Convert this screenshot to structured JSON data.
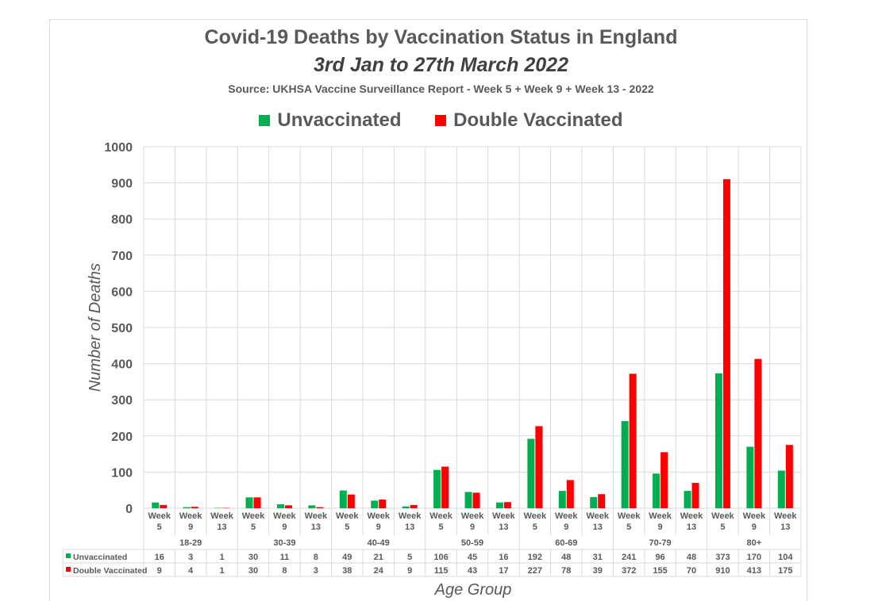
{
  "colors": {
    "unvaccinated": "#00b050",
    "double_vaccinated": "#ff0000",
    "grid": "#d9d9d9",
    "text": "#595959"
  },
  "header": {
    "title": "Covid-19 Deaths by Vaccination Status in England",
    "subtitle": "3rd Jan to 27th March 2022",
    "source": "Source: UKHSA Vaccine Surveillance Report - Week 5 + Week 9 + Week 13 - 2022"
  },
  "legend": {
    "unvaccinated": "Unvaccinated",
    "double_vaccinated": "Double Vaccinated"
  },
  "chart_data": {
    "type": "bar",
    "title": "Covid-19 Deaths by Vaccination Status in England",
    "subtitle": "3rd Jan to 27th March 2022",
    "ylabel": "Number of Deaths",
    "xlabel": "Age Group",
    "ylim": [
      0,
      1000
    ],
    "yticks": [
      0,
      100,
      200,
      300,
      400,
      500,
      600,
      700,
      800,
      900,
      1000
    ],
    "grid": true,
    "legend_position": "top",
    "data_table": true,
    "groups": [
      "18-29",
      "30-39",
      "40-49",
      "50-59",
      "60-69",
      "70-79",
      "80+"
    ],
    "weeks": [
      "5",
      "9",
      "13"
    ],
    "week_word": "Week",
    "series": [
      {
        "name": "Unvaccinated",
        "color": "#00b050",
        "values": [
          16,
          3,
          1,
          30,
          11,
          8,
          49,
          21,
          5,
          106,
          45,
          16,
          192,
          48,
          31,
          241,
          96,
          48,
          373,
          170,
          104
        ]
      },
      {
        "name": "Double Vaccinated",
        "color": "#ff0000",
        "values": [
          9,
          4,
          1,
          30,
          8,
          3,
          38,
          24,
          9,
          115,
          43,
          17,
          227,
          78,
          39,
          372,
          155,
          70,
          910,
          413,
          175
        ]
      }
    ]
  }
}
